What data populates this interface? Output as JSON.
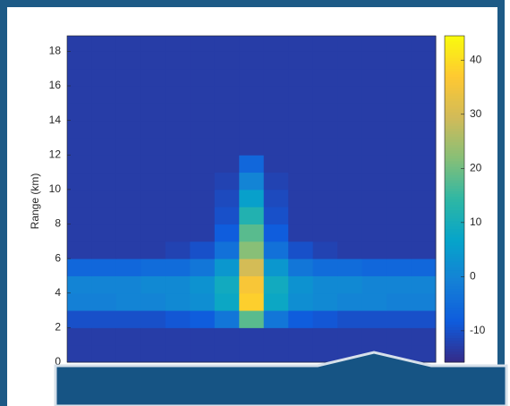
{
  "chart_data": {
    "type": "heatmap",
    "y_label": "Range (km)",
    "ylim": [
      0,
      18.9
    ],
    "yticks": [
      0,
      2,
      4,
      6,
      8,
      10,
      12,
      14,
      16,
      18
    ],
    "y": [
      0.5,
      1.5,
      2.5,
      3.5,
      4.5,
      5.5,
      6.5,
      7.5,
      8.5,
      9.5,
      10.5,
      11.5,
      12.5,
      13.5,
      14.5,
      15.5,
      16.5,
      17.5,
      18.5
    ],
    "z": [
      [
        -13,
        -13,
        -13,
        -13,
        -13,
        -13,
        -13,
        -13,
        -13,
        -13,
        -13,
        -13,
        -13,
        -13,
        -13
      ],
      [
        -13,
        -13,
        -13,
        -13,
        -13,
        -13,
        -13,
        -13,
        -13,
        -13,
        -13,
        -13,
        -13,
        -13,
        -13
      ],
      [
        -10,
        -10,
        -10,
        -10,
        -9,
        -8,
        -3,
        18,
        -3,
        -8,
        -9,
        -10,
        -10,
        -10,
        -10
      ],
      [
        -1,
        -1,
        0,
        0,
        1,
        2,
        8,
        38,
        8,
        2,
        1,
        0,
        0,
        -1,
        -1
      ],
      [
        0,
        0,
        0,
        1,
        1,
        3,
        9,
        36,
        9,
        3,
        1,
        1,
        0,
        0,
        0
      ],
      [
        -6,
        -6,
        -6,
        -5,
        -5,
        -3,
        4,
        30,
        4,
        -3,
        -5,
        -5,
        -6,
        -6,
        -6
      ],
      [
        -13,
        -13,
        -13,
        -13,
        -12,
        -10,
        -4,
        22,
        -4,
        -10,
        -12,
        -13,
        -13,
        -13,
        -13
      ],
      [
        -13,
        -13,
        -13,
        -13,
        -13,
        -13,
        -8,
        18,
        -8,
        -13,
        -13,
        -13,
        -13,
        -13,
        -13
      ],
      [
        -13,
        -13,
        -13,
        -13,
        -13,
        -13,
        -10,
        12,
        -10,
        -13,
        -13,
        -13,
        -13,
        -13,
        -13
      ],
      [
        -13,
        -13,
        -13,
        -13,
        -13,
        -13,
        -11,
        6,
        -11,
        -13,
        -13,
        -13,
        -13,
        -13,
        -13
      ],
      [
        -13,
        -13,
        -13,
        -13,
        -13,
        -13,
        -12,
        0,
        -12,
        -13,
        -13,
        -13,
        -13,
        -13,
        -13
      ],
      [
        -13,
        -13,
        -13,
        -13,
        -13,
        -13,
        -13,
        -6,
        -13,
        -13,
        -13,
        -13,
        -13,
        -13,
        -13
      ],
      [
        -13,
        -13,
        -13,
        -13,
        -13,
        -13,
        -13,
        -13,
        -13,
        -13,
        -13,
        -13,
        -13,
        -13,
        -13
      ],
      [
        -13,
        -13,
        -13,
        -13,
        -13,
        -13,
        -13,
        -13,
        -13,
        -13,
        -13,
        -13,
        -13,
        -13,
        -13
      ],
      [
        -13,
        -13,
        -13,
        -13,
        -13,
        -13,
        -13,
        -13,
        -13,
        -13,
        -13,
        -13,
        -13,
        -13,
        -13
      ],
      [
        -13,
        -13,
        -13,
        -13,
        -13,
        -13,
        -13,
        -13,
        -13,
        -13,
        -13,
        -13,
        -13,
        -13,
        -13
      ],
      [
        -13,
        -13,
        -13,
        -13,
        -13,
        -13,
        -13,
        -13,
        -13,
        -13,
        -13,
        -13,
        -13,
        -13,
        -13
      ],
      [
        -13,
        -13,
        -13,
        -13,
        -13,
        -13,
        -13,
        -13,
        -13,
        -13,
        -13,
        -13,
        -13,
        -13,
        -13
      ],
      [
        -13,
        -13,
        -13,
        -13,
        -13,
        -13,
        -13,
        -13,
        -13,
        -13,
        -13,
        -13,
        -13,
        -13,
        -13
      ]
    ],
    "zlim": [
      -15.8,
      44.5
    ],
    "zticks": [
      -10,
      0,
      10,
      20,
      30,
      40
    ],
    "colormap": [
      "#352a87",
      "#0f5cdd",
      "#1481d6",
      "#06a4ca",
      "#2eb7a4",
      "#87bf77",
      "#d1bb59",
      "#fec832",
      "#f9fb0e"
    ]
  }
}
